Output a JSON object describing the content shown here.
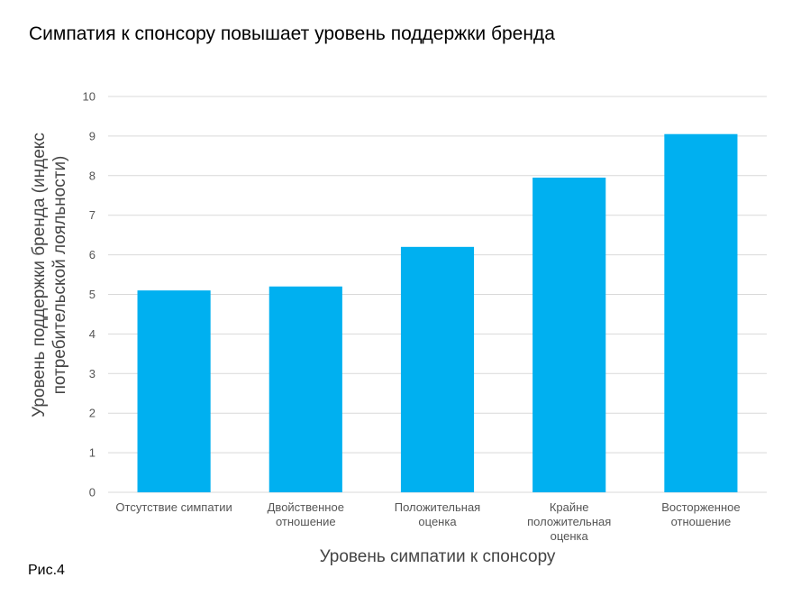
{
  "title": "Симпатия к спонсору повышает уровень поддержки бренда",
  "caption": "Рис.4",
  "chart_data": {
    "type": "bar",
    "title": "Симпатия к спонсору повышает уровень поддержки бренда",
    "xlabel": "Уровень симпатии к спонсору",
    "ylabel_lines": [
      "Уровень поддержки бренда (индекс",
      "потребительской лояльности)"
    ],
    "categories": [
      [
        "Отсутствие симпатии"
      ],
      [
        "Двойственное",
        "отношение"
      ],
      [
        "Положительная",
        "оценка"
      ],
      [
        "Крайне",
        "положительная",
        "оценка"
      ],
      [
        "Восторженное",
        "отношение"
      ]
    ],
    "values": [
      5.1,
      5.2,
      6.2,
      7.95,
      9.05
    ],
    "ylim": [
      0,
      10
    ],
    "yticks": [
      0,
      1,
      2,
      3,
      4,
      5,
      6,
      7,
      8,
      9,
      10
    ],
    "grid": true,
    "legend": "none",
    "bar_color": "#00B0F0",
    "grid_color": "#d9d9d9"
  }
}
